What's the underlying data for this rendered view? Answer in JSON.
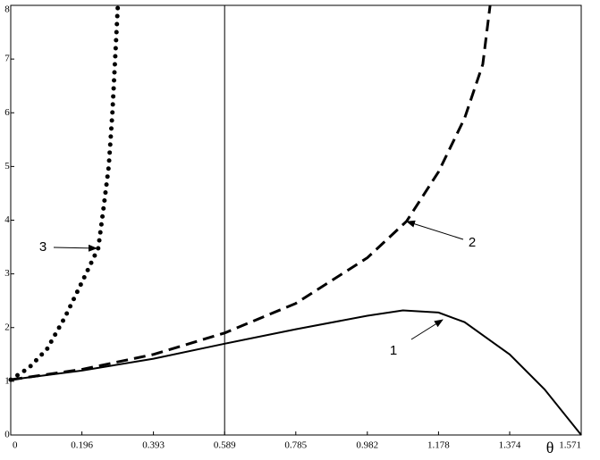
{
  "chart_data": {
    "type": "line",
    "x_label": "θ",
    "xlim": [
      0,
      1.571
    ],
    "ylim": [
      0,
      8
    ],
    "xticks": [
      0,
      0.196,
      0.393,
      0.589,
      0.785,
      0.982,
      1.178,
      1.374,
      1.571
    ],
    "yticks": [
      0,
      1,
      2,
      3,
      4,
      5,
      6,
      7,
      8
    ],
    "vline": 0.589,
    "series": [
      {
        "color": "#000000",
        "style": "solid",
        "x": [
          0,
          0.196,
          0.393,
          0.589,
          0.785,
          0.982,
          1.08,
          1.178,
          1.25,
          1.374,
          1.47,
          1.571
        ],
        "values": [
          1.03,
          1.2,
          1.42,
          1.7,
          1.97,
          2.22,
          2.32,
          2.28,
          2.1,
          1.5,
          0.85,
          0
        ]
      },
      {
        "color": "#000000",
        "style": "dashed",
        "x": [
          0,
          0.196,
          0.393,
          0.589,
          0.785,
          0.982,
          1.09,
          1.178,
          1.25,
          1.3,
          1.32
        ],
        "values": [
          1.03,
          1.22,
          1.5,
          1.9,
          2.45,
          3.3,
          3.98,
          4.9,
          5.9,
          6.9,
          8
        ]
      },
      {
        "color": "#000000",
        "style": "dotted",
        "x": [
          0,
          0.05,
          0.1,
          0.15,
          0.2,
          0.241,
          0.255,
          0.27,
          0.28,
          0.295
        ],
        "values": [
          1.03,
          1.25,
          1.6,
          2.2,
          2.9,
          3.48,
          4.2,
          5.0,
          6.0,
          8
        ]
      }
    ],
    "annotations": [
      "1",
      "2",
      "3"
    ]
  }
}
